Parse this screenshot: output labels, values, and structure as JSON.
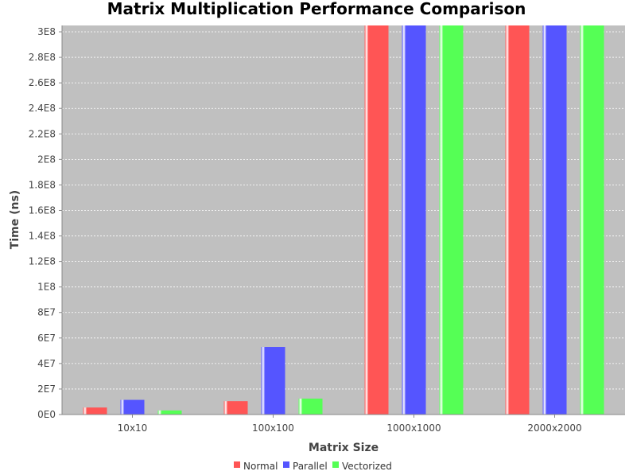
{
  "chart_data": {
    "type": "bar",
    "title": "Matrix Multiplication Performance Comparison",
    "xlabel": "Matrix Size",
    "ylabel": "Time (ns)",
    "categories": [
      "10x10",
      "100x100",
      "1000x1000",
      "2000x2000"
    ],
    "series": [
      {
        "name": "Normal",
        "color": "#ff5555",
        "values": [
          5500000,
          10500000,
          305000000,
          305000000
        ]
      },
      {
        "name": "Parallel",
        "color": "#5555ff",
        "values": [
          11500000,
          53000000,
          305000000,
          305000000
        ]
      },
      {
        "name": "Vectorized",
        "color": "#55ff55",
        "values": [
          3200000,
          12500000,
          305000000,
          305000000
        ]
      }
    ],
    "ylim": [
      0,
      305000000
    ],
    "yticks": [
      {
        "value": 0,
        "label": "0E0"
      },
      {
        "value": 20000000,
        "label": "2E7"
      },
      {
        "value": 40000000,
        "label": "4E7"
      },
      {
        "value": 60000000,
        "label": "6E7"
      },
      {
        "value": 80000000,
        "label": "8E7"
      },
      {
        "value": 100000000,
        "label": "1E8"
      },
      {
        "value": 120000000,
        "label": "1.2E8"
      },
      {
        "value": 140000000,
        "label": "1.4E8"
      },
      {
        "value": 160000000,
        "label": "1.6E8"
      },
      {
        "value": 180000000,
        "label": "1.8E8"
      },
      {
        "value": 200000000,
        "label": "2E8"
      },
      {
        "value": 220000000,
        "label": "2.2E8"
      },
      {
        "value": 240000000,
        "label": "2.4E8"
      },
      {
        "value": 260000000,
        "label": "2.6E8"
      },
      {
        "value": 280000000,
        "label": "2.8E8"
      },
      {
        "value": 300000000,
        "label": "3E8"
      }
    ],
    "grid": true,
    "plot_background": "#c0c0c0",
    "legend_position": "bottom"
  }
}
